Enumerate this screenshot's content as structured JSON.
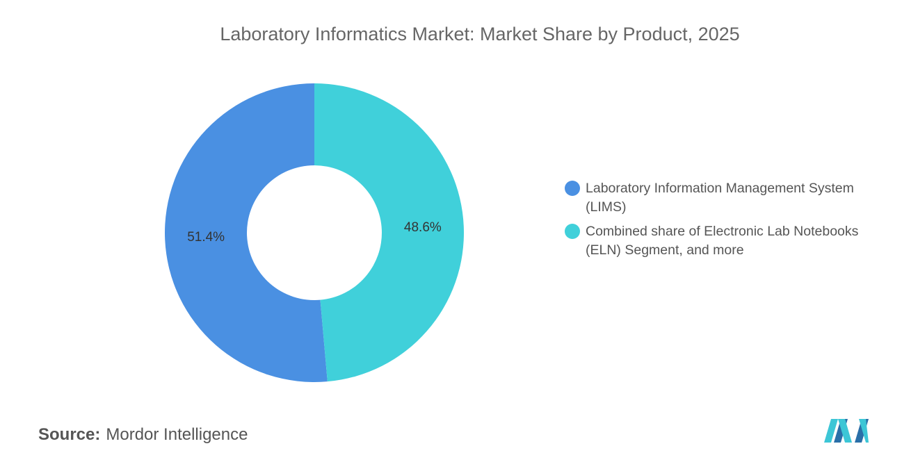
{
  "chart_data": {
    "type": "pie",
    "donut": true,
    "title": "Laboratory Informatics Market: Market Share by Product, 2025",
    "categories": [
      "Laboratory Information Management System (LIMS)",
      "Combined share of Electronic Lab Notebooks (ELN) Segment, and more"
    ],
    "values": [
      51.4,
      48.6
    ],
    "value_labels": [
      "51.4%",
      "48.6%"
    ],
    "colors": [
      "#4a90e2",
      "#40d0da"
    ],
    "legend": "right",
    "source": {
      "label": "Source:",
      "text": "Mordor Intelligence"
    }
  }
}
